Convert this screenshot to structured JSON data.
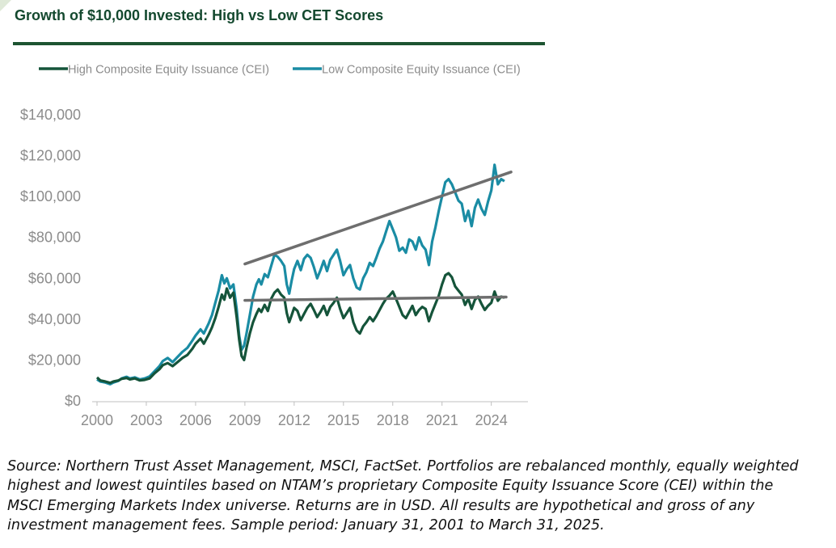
{
  "title": "Growth of $10,000 Invested: High vs Low CET Scores",
  "source_note": "Source: Northern Trust Asset Management, MSCI, FactSet. Portfolios are rebalanced monthly, equally weighted\nhighest and lowest quintiles based on NTAM’s proprietary Composite Equity Issuance Score (CEI) within the\nMSCI Emerging Markets Index universe. Returns are in USD. All results are hypothetical and gross of any\ninvestment management fees. Sample period: January 31, 2001 to March 31, 2025.",
  "colors": {
    "title": "#14492f",
    "rule": "#1d5431",
    "high": "#15543a",
    "low": "#1a8ca4",
    "trend": "#6e6e6e",
    "axis_text": "#8c8c8c"
  },
  "chart_data": {
    "type": "line",
    "title": "Growth of $10,000 Invested: High vs Low CET Scores",
    "xlabel": "",
    "ylabel": "",
    "xlim": [
      2000,
      2025
    ],
    "ylim": [
      0,
      140000
    ],
    "x_ticks": [
      2000,
      2003,
      2006,
      2009,
      2012,
      2015,
      2018,
      2021,
      2024
    ],
    "x_tick_labels": [
      "2000",
      "2003",
      "2006",
      "2009",
      "2012",
      "2015",
      "2018",
      "2021",
      "2024"
    ],
    "y_ticks": [
      0,
      20000,
      40000,
      60000,
      80000,
      100000,
      120000,
      140000
    ],
    "y_tick_labels": [
      "$0",
      "$20,000",
      "$40,000",
      "$60,000",
      "$80,000",
      "$100,000",
      "$120,000",
      "$140,000"
    ],
    "grid": false,
    "legend_position": "top-left",
    "series": [
      {
        "name": "High Composite Equity Issuance (CEI)",
        "color": "#15543a",
        "points": [
          [
            2000.0,
            11500
          ],
          [
            2000.2,
            10000
          ],
          [
            2000.5,
            9500
          ],
          [
            2000.8,
            8800
          ],
          [
            2001.0,
            9500
          ],
          [
            2001.3,
            10000
          ],
          [
            2001.5,
            10800
          ],
          [
            2001.8,
            11200
          ],
          [
            2002.0,
            10500
          ],
          [
            2002.3,
            11000
          ],
          [
            2002.6,
            10000
          ],
          [
            2002.9,
            10300
          ],
          [
            2003.2,
            11000
          ],
          [
            2003.5,
            13500
          ],
          [
            2003.8,
            15500
          ],
          [
            2004.0,
            17500
          ],
          [
            2004.3,
            18500
          ],
          [
            2004.6,
            17000
          ],
          [
            2004.9,
            19000
          ],
          [
            2005.2,
            21000
          ],
          [
            2005.5,
            22500
          ],
          [
            2005.8,
            25500
          ],
          [
            2006.0,
            28000
          ],
          [
            2006.3,
            30500
          ],
          [
            2006.5,
            28000
          ],
          [
            2006.8,
            32500
          ],
          [
            2007.0,
            36000
          ],
          [
            2007.2,
            40500
          ],
          [
            2007.4,
            46000
          ],
          [
            2007.6,
            52000
          ],
          [
            2007.75,
            49500
          ],
          [
            2007.9,
            55000
          ],
          [
            2008.1,
            50500
          ],
          [
            2008.3,
            53000
          ],
          [
            2008.5,
            41000
          ],
          [
            2008.65,
            30000
          ],
          [
            2008.8,
            22000
          ],
          [
            2008.95,
            20000
          ],
          [
            2009.1,
            26000
          ],
          [
            2009.3,
            33000
          ],
          [
            2009.5,
            38500
          ],
          [
            2009.7,
            42500
          ],
          [
            2009.85,
            45000
          ],
          [
            2010.0,
            43500
          ],
          [
            2010.2,
            47000
          ],
          [
            2010.4,
            44000
          ],
          [
            2010.6,
            50000
          ],
          [
            2010.8,
            53000
          ],
          [
            2011.0,
            54500
          ],
          [
            2011.2,
            52000
          ],
          [
            2011.4,
            50500
          ],
          [
            2011.55,
            43000
          ],
          [
            2011.7,
            38500
          ],
          [
            2011.85,
            42000
          ],
          [
            2012.0,
            45500
          ],
          [
            2012.2,
            44000
          ],
          [
            2012.4,
            39500
          ],
          [
            2012.6,
            42500
          ],
          [
            2012.8,
            45500
          ],
          [
            2013.0,
            47500
          ],
          [
            2013.2,
            44500
          ],
          [
            2013.4,
            41000
          ],
          [
            2013.6,
            43500
          ],
          [
            2013.8,
            46500
          ],
          [
            2014.0,
            42000
          ],
          [
            2014.2,
            46000
          ],
          [
            2014.4,
            48000
          ],
          [
            2014.6,
            50500
          ],
          [
            2014.8,
            45000
          ],
          [
            2015.0,
            40500
          ],
          [
            2015.2,
            43000
          ],
          [
            2015.4,
            45500
          ],
          [
            2015.6,
            38500
          ],
          [
            2015.8,
            34500
          ],
          [
            2016.0,
            33000
          ],
          [
            2016.2,
            36500
          ],
          [
            2016.4,
            38500
          ],
          [
            2016.6,
            41000
          ],
          [
            2016.8,
            39000
          ],
          [
            2017.0,
            41500
          ],
          [
            2017.2,
            44500
          ],
          [
            2017.4,
            47500
          ],
          [
            2017.6,
            50000
          ],
          [
            2017.8,
            51500
          ],
          [
            2018.0,
            53500
          ],
          [
            2018.2,
            50000
          ],
          [
            2018.4,
            46000
          ],
          [
            2018.6,
            42000
          ],
          [
            2018.8,
            40500
          ],
          [
            2019.0,
            43500
          ],
          [
            2019.2,
            46500
          ],
          [
            2019.4,
            42000
          ],
          [
            2019.6,
            44500
          ],
          [
            2019.8,
            46000
          ],
          [
            2020.0,
            45000
          ],
          [
            2020.2,
            39000
          ],
          [
            2020.4,
            43500
          ],
          [
            2020.6,
            47500
          ],
          [
            2020.8,
            51500
          ],
          [
            2021.0,
            57000
          ],
          [
            2021.2,
            61500
          ],
          [
            2021.4,
            62500
          ],
          [
            2021.6,
            60500
          ],
          [
            2021.8,
            56000
          ],
          [
            2022.0,
            54000
          ],
          [
            2022.2,
            52000
          ],
          [
            2022.4,
            47000
          ],
          [
            2022.6,
            50000
          ],
          [
            2022.8,
            45000
          ],
          [
            2023.0,
            49500
          ],
          [
            2023.2,
            51000
          ],
          [
            2023.4,
            47500
          ],
          [
            2023.6,
            44500
          ],
          [
            2023.8,
            46500
          ],
          [
            2024.0,
            48000
          ],
          [
            2024.2,
            53500
          ],
          [
            2024.4,
            49000
          ],
          [
            2024.6,
            51000
          ],
          [
            2024.8,
            50500
          ]
        ]
      },
      {
        "name": "Low Composite Equity Issuance (CEI)",
        "color": "#1a8ca4",
        "points": [
          [
            2000.0,
            10500
          ],
          [
            2000.2,
            9500
          ],
          [
            2000.5,
            9000
          ],
          [
            2000.8,
            8200
          ],
          [
            2001.0,
            9000
          ],
          [
            2001.3,
            9800
          ],
          [
            2001.5,
            11000
          ],
          [
            2001.8,
            11800
          ],
          [
            2002.0,
            11000
          ],
          [
            2002.3,
            11500
          ],
          [
            2002.6,
            10500
          ],
          [
            2002.9,
            11000
          ],
          [
            2003.2,
            12000
          ],
          [
            2003.5,
            14500
          ],
          [
            2003.8,
            17000
          ],
          [
            2004.0,
            19500
          ],
          [
            2004.3,
            21000
          ],
          [
            2004.6,
            19000
          ],
          [
            2004.9,
            21500
          ],
          [
            2005.2,
            24000
          ],
          [
            2005.5,
            26000
          ],
          [
            2005.8,
            29500
          ],
          [
            2006.0,
            32000
          ],
          [
            2006.3,
            35000
          ],
          [
            2006.5,
            33000
          ],
          [
            2006.8,
            38000
          ],
          [
            2007.0,
            42000
          ],
          [
            2007.2,
            48000
          ],
          [
            2007.4,
            54000
          ],
          [
            2007.6,
            61500
          ],
          [
            2007.75,
            57500
          ],
          [
            2007.9,
            60000
          ],
          [
            2008.1,
            55000
          ],
          [
            2008.3,
            57000
          ],
          [
            2008.5,
            45000
          ],
          [
            2008.65,
            32000
          ],
          [
            2008.8,
            25000
          ],
          [
            2008.95,
            27000
          ],
          [
            2009.1,
            33000
          ],
          [
            2009.3,
            42000
          ],
          [
            2009.5,
            51000
          ],
          [
            2009.7,
            57000
          ],
          [
            2009.85,
            59500
          ],
          [
            2010.0,
            57000
          ],
          [
            2010.2,
            62000
          ],
          [
            2010.4,
            60500
          ],
          [
            2010.6,
            66000
          ],
          [
            2010.8,
            71500
          ],
          [
            2011.0,
            70500
          ],
          [
            2011.2,
            68500
          ],
          [
            2011.4,
            66000
          ],
          [
            2011.55,
            57000
          ],
          [
            2011.7,
            52500
          ],
          [
            2011.85,
            59000
          ],
          [
            2012.0,
            64500
          ],
          [
            2012.2,
            68500
          ],
          [
            2012.4,
            64000
          ],
          [
            2012.6,
            69500
          ],
          [
            2012.8,
            71500
          ],
          [
            2013.0,
            70000
          ],
          [
            2013.2,
            65500
          ],
          [
            2013.4,
            60000
          ],
          [
            2013.6,
            64000
          ],
          [
            2013.8,
            68500
          ],
          [
            2014.0,
            63500
          ],
          [
            2014.2,
            69000
          ],
          [
            2014.4,
            71500
          ],
          [
            2014.6,
            74000
          ],
          [
            2014.8,
            68500
          ],
          [
            2015.0,
            61500
          ],
          [
            2015.2,
            64500
          ],
          [
            2015.4,
            66500
          ],
          [
            2015.6,
            60000
          ],
          [
            2015.8,
            55500
          ],
          [
            2016.0,
            54500
          ],
          [
            2016.2,
            60000
          ],
          [
            2016.4,
            63000
          ],
          [
            2016.6,
            67500
          ],
          [
            2016.8,
            66000
          ],
          [
            2017.0,
            70000
          ],
          [
            2017.2,
            74500
          ],
          [
            2017.4,
            78000
          ],
          [
            2017.6,
            83000
          ],
          [
            2017.8,
            88000
          ],
          [
            2018.0,
            84000
          ],
          [
            2018.2,
            80000
          ],
          [
            2018.4,
            73500
          ],
          [
            2018.6,
            75000
          ],
          [
            2018.8,
            72500
          ],
          [
            2019.0,
            79000
          ],
          [
            2019.2,
            78000
          ],
          [
            2019.4,
            74000
          ],
          [
            2019.6,
            80000
          ],
          [
            2019.8,
            76000
          ],
          [
            2020.0,
            74000
          ],
          [
            2020.2,
            66500
          ],
          [
            2020.4,
            78000
          ],
          [
            2020.6,
            85000
          ],
          [
            2020.8,
            93000
          ],
          [
            2021.0,
            100000
          ],
          [
            2021.2,
            107000
          ],
          [
            2021.4,
            108500
          ],
          [
            2021.6,
            106000
          ],
          [
            2021.8,
            102000
          ],
          [
            2022.0,
            98000
          ],
          [
            2022.2,
            96500
          ],
          [
            2022.4,
            88000
          ],
          [
            2022.6,
            93000
          ],
          [
            2022.8,
            85500
          ],
          [
            2023.0,
            94500
          ],
          [
            2023.2,
            98500
          ],
          [
            2023.4,
            94000
          ],
          [
            2023.6,
            91000
          ],
          [
            2023.8,
            97500
          ],
          [
            2024.0,
            103000
          ],
          [
            2024.2,
            115500
          ],
          [
            2024.4,
            106000
          ],
          [
            2024.6,
            108500
          ],
          [
            2024.8,
            107500
          ]
        ]
      }
    ],
    "trend_lines": [
      {
        "color": "#6e6e6e",
        "points": [
          [
            2009.0,
            67000
          ],
          [
            2025.2,
            112000
          ]
        ]
      },
      {
        "color": "#6e6e6e",
        "points": [
          [
            2009.0,
            49200
          ],
          [
            2024.9,
            50800
          ]
        ]
      }
    ]
  }
}
